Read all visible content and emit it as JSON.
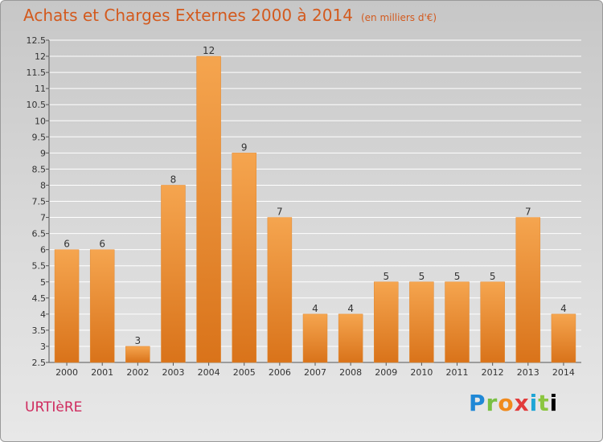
{
  "chart_data": {
    "type": "bar",
    "title": "Achats et Charges Externes 2000 à 2014",
    "unit": "(en milliers d'€)",
    "categories": [
      "2000",
      "2001",
      "2002",
      "2003",
      "2004",
      "2005",
      "2006",
      "2007",
      "2008",
      "2009",
      "2010",
      "2011",
      "2012",
      "2013",
      "2014"
    ],
    "values": [
      6,
      6,
      3,
      8,
      12,
      9,
      7,
      4,
      4,
      5,
      5,
      5,
      5,
      7,
      4
    ],
    "ylim": [
      2.5,
      12.5
    ],
    "yticks": [
      "2.5",
      "3",
      "3.5",
      "4",
      "4.5",
      "5",
      "5.5",
      "6",
      "6.5",
      "7",
      "7.5",
      "8",
      "8.5",
      "9",
      "9.5",
      "10",
      "10.5",
      "11",
      "11.5",
      "12",
      "12.5"
    ],
    "grid": true,
    "bar_color_top": "#f5a54f",
    "bar_color_bottom": "#d9731a"
  },
  "footer": {
    "town": "URTIèRE",
    "logo_letters": [
      "P",
      "r",
      "o",
      "x",
      "i",
      "t",
      "i"
    ]
  }
}
